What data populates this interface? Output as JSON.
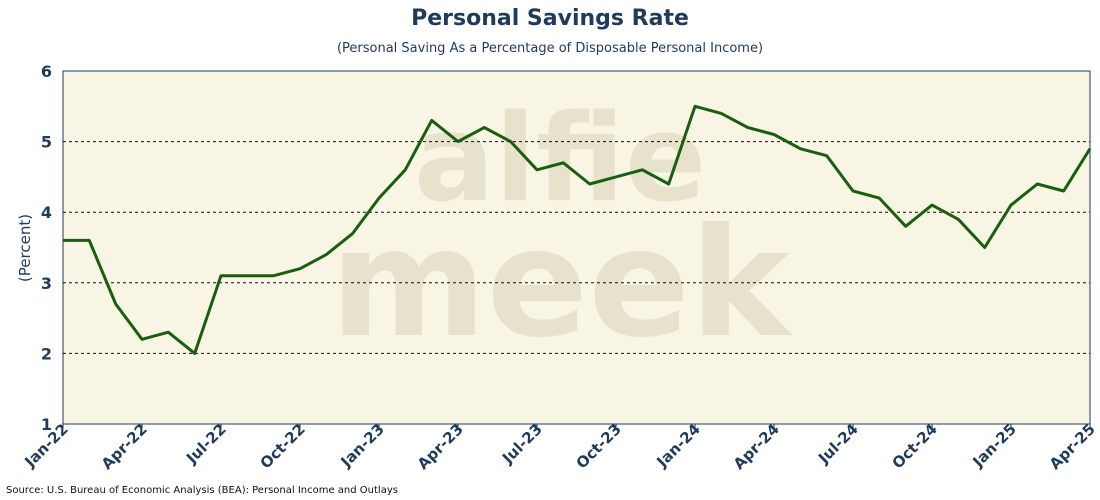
{
  "source": "Source: U.S. Bureau of Economic Analysis (BEA): Personal Income and Outlays",
  "watermark": {
    "line1": "alfie",
    "line2": "meek"
  },
  "colors": {
    "plot_bg": "#f8f5e4",
    "line": "#1a5e10",
    "title": "#1f3b5c",
    "axis_text": "#1f3b5c",
    "watermark": "#e7e2cb"
  },
  "chart_data": {
    "type": "line",
    "title": "Personal Savings Rate",
    "subtitle": "(Personal Saving As a Percentage of Disposable Personal Income)",
    "ylabel": "(Percent)",
    "xlabel": "",
    "ylim": [
      1,
      6
    ],
    "yticks": [
      1,
      2,
      3,
      4,
      5,
      6
    ],
    "grid_values": [
      2,
      3,
      4,
      5
    ],
    "legend": "none",
    "x": [
      "Jan-22",
      "Feb-22",
      "Mar-22",
      "Apr-22",
      "May-22",
      "Jun-22",
      "Jul-22",
      "Aug-22",
      "Sep-22",
      "Oct-22",
      "Nov-22",
      "Dec-22",
      "Jan-23",
      "Feb-23",
      "Mar-23",
      "Apr-23",
      "May-23",
      "Jun-23",
      "Jul-23",
      "Aug-23",
      "Sep-23",
      "Oct-23",
      "Nov-23",
      "Dec-23",
      "Jan-24",
      "Feb-24",
      "Mar-24",
      "Apr-24",
      "May-24",
      "Jun-24",
      "Jul-24",
      "Aug-24",
      "Sep-24",
      "Oct-24",
      "Nov-24",
      "Dec-24",
      "Jan-25",
      "Feb-25",
      "Mar-25",
      "Apr-25"
    ],
    "xticks": [
      "Jan-22",
      "Apr-22",
      "Jul-22",
      "Oct-22",
      "Jan-23",
      "Apr-23",
      "Jul-23",
      "Oct-23",
      "Jan-24",
      "Apr-24",
      "Jul-24",
      "Oct-24",
      "Jan-25",
      "Apr-25"
    ],
    "values": [
      3.6,
      3.6,
      2.7,
      2.2,
      2.3,
      2.0,
      3.1,
      3.1,
      3.1,
      3.2,
      3.4,
      3.7,
      4.2,
      4.6,
      5.3,
      5.0,
      5.2,
      5.0,
      4.6,
      4.7,
      4.4,
      4.5,
      4.6,
      4.4,
      5.5,
      5.4,
      5.2,
      5.1,
      4.9,
      4.8,
      4.3,
      4.2,
      3.8,
      4.1,
      3.9,
      3.5,
      4.1,
      4.4,
      4.3,
      4.9
    ]
  }
}
